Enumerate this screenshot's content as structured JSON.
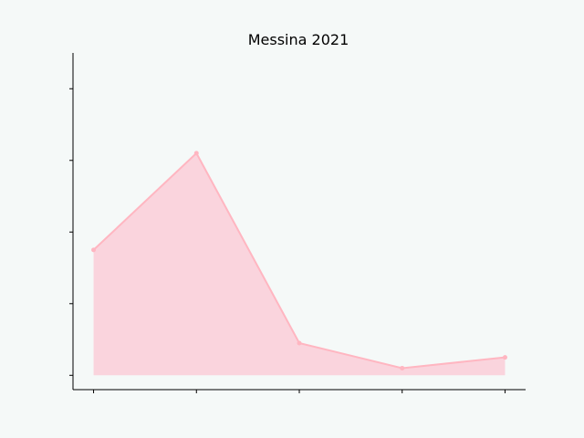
{
  "chart_data": {
    "type": "area",
    "title": "Messina 2021",
    "xlabel": "",
    "ylabel": "",
    "x": [
      0,
      1,
      2,
      3,
      4
    ],
    "series": [
      {
        "values": [
          35,
          62,
          9,
          2,
          5
        ]
      }
    ],
    "xlim": [
      -0.2,
      4.2
    ],
    "ylim": [
      -4,
      90
    ],
    "yticks": [
      0,
      20,
      40,
      60,
      80
    ],
    "grid": false,
    "legend": "none",
    "colors": {
      "line": "#ffb6c1",
      "fill": "#fad4dd",
      "axis": "#000000",
      "background": "#f5f9f8"
    }
  }
}
